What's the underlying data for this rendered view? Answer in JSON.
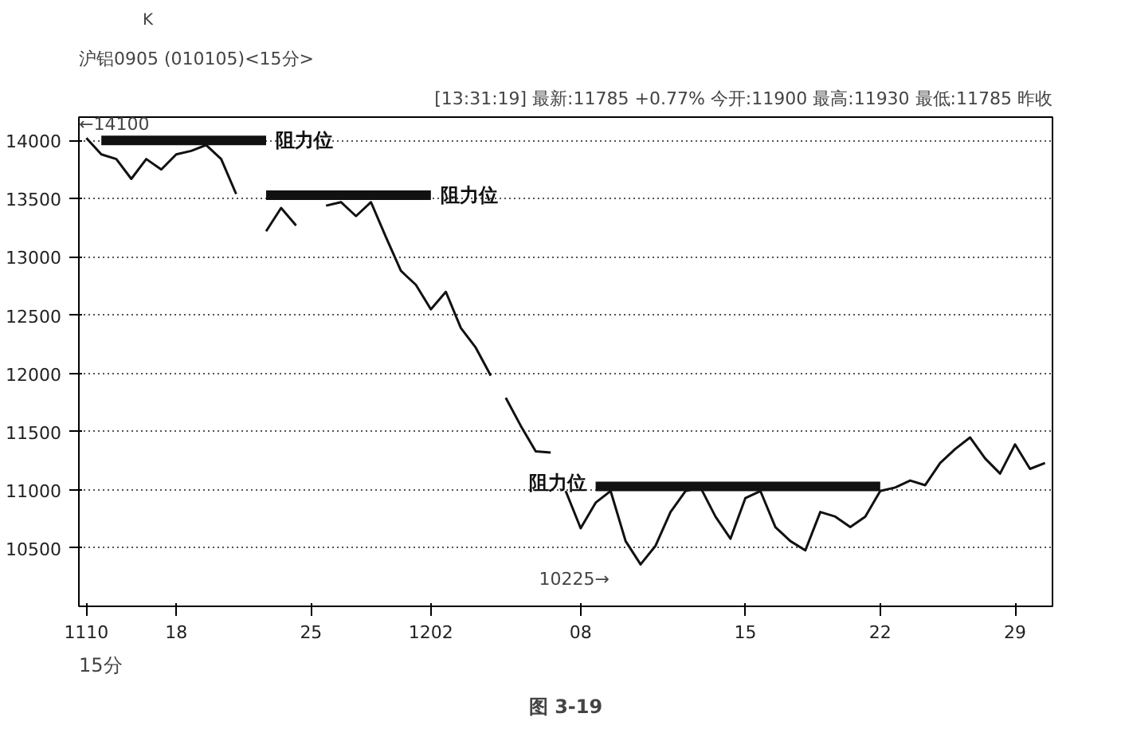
{
  "chart_data": {
    "type": "line",
    "title": "沪铝0905 (010105)<15分>",
    "subtitle": "[13:31:19] 最新:11785 +0.77% 今开:11900 最高:11930 最低:11785 昨收",
    "categories": [
      "1110",
      null,
      null,
      null,
      null,
      null,
      "18",
      null,
      null,
      null,
      null,
      null,
      null,
      null,
      null,
      "25",
      null,
      null,
      null,
      null,
      null,
      null,
      null,
      "1202",
      null,
      null,
      null,
      null,
      null,
      null,
      null,
      null,
      null,
      "08",
      null,
      null,
      null,
      null,
      null,
      null,
      null,
      null,
      null,
      null,
      "15",
      null,
      null,
      null,
      null,
      null,
      null,
      null,
      null,
      "22",
      null,
      null,
      null,
      null,
      null,
      null,
      null,
      null,
      "29",
      null,
      null
    ],
    "series": [
      {
        "color": "#111111",
        "values": [
          14020,
          13880,
          13840,
          13670,
          13840,
          13750,
          13880,
          13910,
          13960,
          13840,
          13540,
          null,
          13220,
          13420,
          13270,
          null,
          13440,
          13470,
          13350,
          13470,
          13170,
          12880,
          12760,
          12550,
          12700,
          12390,
          12220,
          11980,
          null,
          null,
          null,
          null,
          null,
          null,
          null,
          null,
          null,
          null,
          null,
          null,
          null,
          null,
          null,
          null,
          null,
          null,
          null,
          null,
          null,
          null,
          null,
          null,
          null,
          null,
          null,
          null,
          null,
          null,
          null,
          null,
          null,
          null,
          null,
          null,
          null
        ]
      },
      {
        "color": "#111111",
        "values": [
          null,
          null,
          null,
          null,
          null,
          null,
          null,
          null,
          null,
          null,
          null,
          null,
          null,
          null,
          null,
          null,
          null,
          null,
          null,
          null,
          null,
          null,
          null,
          null,
          null,
          null,
          null,
          null,
          11790,
          11550,
          11330,
          11320,
          null,
          null,
          null,
          null,
          null,
          null,
          null,
          null,
          null,
          null,
          null,
          null,
          null,
          null,
          null,
          null,
          null,
          null,
          null,
          null,
          null,
          null,
          null,
          null,
          null,
          null,
          null,
          null,
          null,
          null,
          null,
          null,
          null
        ]
      },
      {
        "color": "#111111",
        "values": [
          null,
          null,
          null,
          null,
          null,
          null,
          null,
          null,
          null,
          null,
          null,
          null,
          null,
          null,
          null,
          null,
          null,
          null,
          null,
          null,
          null,
          null,
          null,
          null,
          null,
          null,
          null,
          null,
          null,
          null,
          null,
          null,
          10990,
          10670,
          10890,
          10990,
          10560,
          10360,
          10520,
          10810,
          10990,
          11020,
          10770,
          10580,
          10930,
          10990,
          10680,
          10560,
          10480,
          10810,
          10770,
          10680,
          10770,
          10990,
          11020,
          11080,
          11040,
          11230,
          11350,
          11450,
          11270,
          11140,
          11390,
          11180,
          11230
        ]
      },
      {
        "name": "阻力位",
        "color": "#111111",
        "values": [
          null,
          14000,
          14000,
          14000,
          14000,
          14000,
          14000,
          14000,
          14000,
          14000,
          14000,
          14000,
          14000,
          null,
          null,
          null,
          null,
          null,
          null,
          null,
          null,
          null,
          null,
          null,
          null,
          null,
          null,
          null,
          null,
          null,
          null,
          null,
          null,
          null,
          null,
          null,
          null,
          null,
          null,
          null,
          null,
          null,
          null,
          null,
          null,
          null,
          null,
          null,
          null,
          null,
          null,
          null,
          null,
          null,
          null,
          null,
          null,
          null,
          null,
          null,
          null,
          null,
          null,
          null,
          null
        ]
      },
      {
        "name": "阻力位",
        "color": "#111111",
        "values": [
          null,
          null,
          null,
          null,
          null,
          null,
          null,
          null,
          null,
          null,
          null,
          null,
          13530,
          13530,
          13530,
          13530,
          13530,
          13530,
          13530,
          13530,
          13530,
          13530,
          13530,
          13530,
          null,
          null,
          null,
          null,
          null,
          null,
          null,
          null,
          null,
          null,
          null,
          null,
          null,
          null,
          null,
          null,
          null,
          null,
          null,
          null,
          null,
          null,
          null,
          null,
          null,
          null,
          null,
          null,
          null,
          null,
          null,
          null,
          null,
          null,
          null,
          null,
          null,
          null,
          null,
          null,
          null
        ]
      },
      {
        "name": "阻力位",
        "color": "#111111",
        "values": [
          null,
          null,
          null,
          null,
          null,
          null,
          null,
          null,
          null,
          null,
          null,
          null,
          null,
          null,
          null,
          null,
          null,
          null,
          null,
          null,
          null,
          null,
          null,
          null,
          null,
          null,
          null,
          null,
          null,
          null,
          null,
          null,
          null,
          null,
          11030,
          11030,
          11030,
          11030,
          11030,
          11030,
          11030,
          11030,
          11030,
          11030,
          11030,
          11030,
          11030,
          11030,
          11030,
          11030,
          11030,
          11030,
          11030,
          11030,
          null,
          null,
          null,
          null,
          null,
          null,
          null,
          null,
          null,
          null,
          null
        ]
      }
    ],
    "ylim": [
      10000,
      14200
    ],
    "yticks": [
      10500,
      11000,
      11500,
      12000,
      12500,
      13000,
      13500,
      14000
    ],
    "grid": "y",
    "legend": false,
    "line_style": "solid",
    "annotations": [
      "←14100",
      "10225→",
      "K",
      "15分",
      "图 3-19"
    ]
  }
}
